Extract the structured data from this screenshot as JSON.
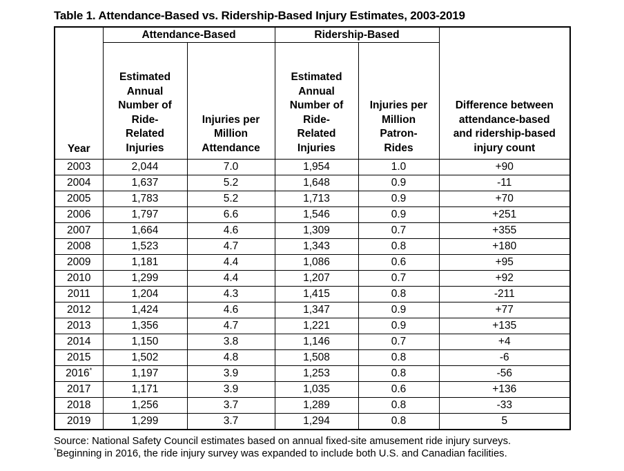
{
  "title": "Table 1. Attendance-Based vs. Ridership-Based Injury Estimates, 2003-2019",
  "colors": {
    "text": "#000000",
    "background": "#ffffff",
    "border": "#000000"
  },
  "table": {
    "group_headers": {
      "attendance": "Attendance-Based",
      "ridership": "Ridership-Based"
    },
    "column_headers": {
      "year": "Year",
      "att_injuries": "Estimated\nAnnual\nNumber of\nRide-\nRelated\nInjuries",
      "att_rate": "Injuries per\nMillion\nAttendance",
      "rid_injuries": "Estimated\nAnnual\nNumber of\nRide-\nRelated\nInjuries",
      "rid_rate": "Injuries per\nMillion\nPatron-\nRides",
      "difference": "Difference between\nattendance-based\nand ridership-based\ninjury count"
    },
    "rows": [
      {
        "year": "2003",
        "att_injuries": "2,044",
        "att_rate": "7.0",
        "rid_injuries": "1,954",
        "rid_rate": "1.0",
        "diff": "+90"
      },
      {
        "year": "2004",
        "att_injuries": "1,637",
        "att_rate": "5.2",
        "rid_injuries": "1,648",
        "rid_rate": "0.9",
        "diff": "-11"
      },
      {
        "year": "2005",
        "att_injuries": "1,783",
        "att_rate": "5.2",
        "rid_injuries": "1,713",
        "rid_rate": "0.9",
        "diff": "+70"
      },
      {
        "year": "2006",
        "att_injuries": "1,797",
        "att_rate": "6.6",
        "rid_injuries": "1,546",
        "rid_rate": "0.9",
        "diff": "+251"
      },
      {
        "year": "2007",
        "att_injuries": "1,664",
        "att_rate": "4.6",
        "rid_injuries": "1,309",
        "rid_rate": "0.7",
        "diff": "+355"
      },
      {
        "year": "2008",
        "att_injuries": "1,523",
        "att_rate": "4.7",
        "rid_injuries": "1,343",
        "rid_rate": "0.8",
        "diff": "+180"
      },
      {
        "year": "2009",
        "att_injuries": "1,181",
        "att_rate": "4.4",
        "rid_injuries": "1,086",
        "rid_rate": "0.6",
        "diff": "+95"
      },
      {
        "year": "2010",
        "att_injuries": "1,299",
        "att_rate": "4.4",
        "rid_injuries": "1,207",
        "rid_rate": "0.7",
        "diff": "+92"
      },
      {
        "year": "2011",
        "att_injuries": "1,204",
        "att_rate": "4.3",
        "rid_injuries": "1,415",
        "rid_rate": "0.8",
        "diff": "-211"
      },
      {
        "year": "2012",
        "att_injuries": "1,424",
        "att_rate": "4.6",
        "rid_injuries": "1,347",
        "rid_rate": "0.9",
        "diff": "+77"
      },
      {
        "year": "2013",
        "att_injuries": "1,356",
        "att_rate": "4.7",
        "rid_injuries": "1,221",
        "rid_rate": "0.9",
        "diff": "+135"
      },
      {
        "year": "2014",
        "att_injuries": "1,150",
        "att_rate": "3.8",
        "rid_injuries": "1,146",
        "rid_rate": "0.7",
        "diff": "+4"
      },
      {
        "year": "2015",
        "att_injuries": "1,502",
        "att_rate": "4.8",
        "rid_injuries": "1,508",
        "rid_rate": "0.8",
        "diff": "-6"
      },
      {
        "year": "2016",
        "year_suffix": "*",
        "att_injuries": "1,197",
        "att_rate": "3.9",
        "rid_injuries": "1,253",
        "rid_rate": "0.8",
        "diff": "-56"
      },
      {
        "year": "2017",
        "att_injuries": "1,171",
        "att_rate": "3.9",
        "rid_injuries": "1,035",
        "rid_rate": "0.6",
        "diff": "+136"
      },
      {
        "year": "2018",
        "att_injuries": "1,256",
        "att_rate": "3.7",
        "rid_injuries": "1,289",
        "rid_rate": "0.8",
        "diff": "-33"
      },
      {
        "year": "2019",
        "att_injuries": "1,299",
        "att_rate": "3.7",
        "rid_injuries": "1,294",
        "rid_rate": "0.8",
        "diff": "5"
      }
    ]
  },
  "footer": {
    "source": "Source: National Safety Council estimates based on annual fixed-site amusement ride injury surveys.",
    "footnote_marker": "*",
    "footnote": "Beginning in 2016, the ride injury survey was expanded to include both U.S. and Canadian facilities."
  }
}
